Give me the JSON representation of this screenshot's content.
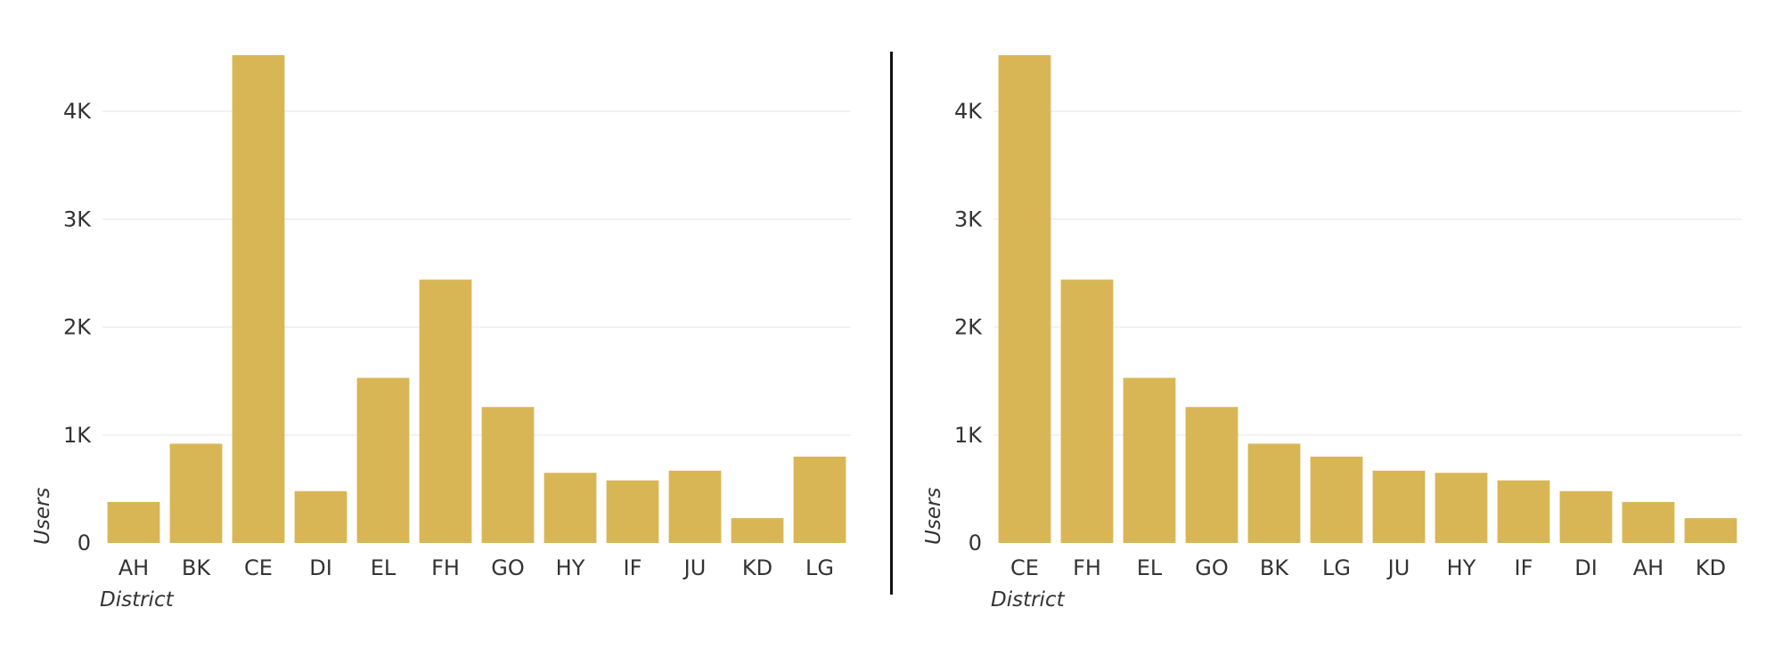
{
  "colors": {
    "bar": "#d9b655",
    "grid": "#eeeeee"
  },
  "chart_data": [
    {
      "type": "bar",
      "categories": [
        "AH",
        "BK",
        "CE",
        "DI",
        "EL",
        "FH",
        "GO",
        "HY",
        "IF",
        "JU",
        "KD",
        "LG"
      ],
      "values": [
        380,
        920,
        4520,
        480,
        1530,
        2440,
        1260,
        650,
        580,
        670,
        230,
        800
      ],
      "xlabel": "District",
      "ylabel": "Users",
      "ylim": [
        0,
        4520
      ],
      "yticks": [
        0,
        1000,
        2000,
        3000,
        4000
      ],
      "yticklabels": [
        "0",
        "1K",
        "2K",
        "3K",
        "4K"
      ],
      "grid": true
    },
    {
      "type": "bar",
      "categories": [
        "CE",
        "FH",
        "EL",
        "GO",
        "BK",
        "LG",
        "JU",
        "HY",
        "IF",
        "DI",
        "AH",
        "KD"
      ],
      "values": [
        4520,
        2440,
        1530,
        1260,
        920,
        800,
        670,
        650,
        580,
        480,
        380,
        230
      ],
      "xlabel": "District",
      "ylabel": "Users",
      "ylim": [
        0,
        4520
      ],
      "yticks": [
        0,
        1000,
        2000,
        3000,
        4000
      ],
      "yticklabels": [
        "0",
        "1K",
        "2K",
        "3K",
        "4K"
      ],
      "grid": true
    }
  ]
}
